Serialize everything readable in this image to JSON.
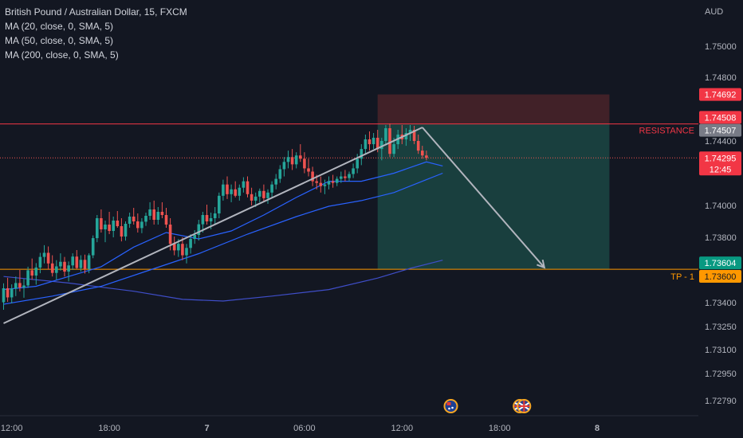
{
  "legend": {
    "title": "British Pound / Australian Dollar, 15, FXCM",
    "ma20": "MA (20, close, 0, SMA, 5)",
    "ma50": "MA (50, close, 0, SMA, 5)",
    "ma200": "MA (200, close, 0, SMA, 5)"
  },
  "colors": {
    "background": "#131722",
    "up": "#26a69a",
    "down": "#ef5350",
    "resistance": "#f23645",
    "tp": "#ff9800",
    "ma": "#2962ff",
    "ma200": "#3f4ec9",
    "trendline": "#b2b5be",
    "profit_zone": "#1b4a46",
    "stop_zone": "#4a2329"
  },
  "chart_data": {
    "type": "candlestick",
    "symbol": "British Pound / Australian Dollar",
    "interval": "15",
    "source": "FXCM",
    "currency_axis_label": "AUD",
    "y_ticks": [
      "1.75000",
      "1.74800",
      "1.74400",
      "1.74000",
      "1.73800",
      "1.73400",
      "1.73250",
      "1.73100",
      "1.72950",
      "1.72790"
    ],
    "y_tick_values": [
      1.75,
      1.748,
      1.744,
      1.74,
      1.738,
      1.734,
      1.7325,
      1.731,
      1.7295,
      1.7279
    ],
    "x_ticks": [
      {
        "label": "12:00",
        "slot": 2
      },
      {
        "label": "18:00",
        "slot": 26
      },
      {
        "label": "7",
        "slot": 50
      },
      {
        "label": "06:00",
        "slot": 74
      },
      {
        "label": "12:00",
        "slot": 98
      },
      {
        "label": "18:00",
        "slot": 122
      },
      {
        "label": "8",
        "slot": 146
      }
    ],
    "candles": [
      [
        1.73402,
        1.73518,
        1.73355,
        1.73488
      ],
      [
        1.73488,
        1.73552,
        1.73405,
        1.73432
      ],
      [
        1.73432,
        1.73512,
        1.73395,
        1.73486
      ],
      [
        1.73486,
        1.7356,
        1.7344,
        1.7352
      ],
      [
        1.7352,
        1.736,
        1.73468,
        1.73492
      ],
      [
        1.73492,
        1.73545,
        1.7343,
        1.73505
      ],
      [
        1.73505,
        1.7362,
        1.7349,
        1.73598
      ],
      [
        1.73598,
        1.7367,
        1.7354,
        1.73566
      ],
      [
        1.73566,
        1.73642,
        1.7351,
        1.73615
      ],
      [
        1.73615,
        1.73705,
        1.7358,
        1.7368
      ],
      [
        1.7368,
        1.73752,
        1.7364,
        1.73705
      ],
      [
        1.73705,
        1.73744,
        1.73602,
        1.7364
      ],
      [
        1.7364,
        1.7369,
        1.7356,
        1.73582
      ],
      [
        1.73582,
        1.7366,
        1.7354,
        1.73622
      ],
      [
        1.73622,
        1.73702,
        1.73596,
        1.7365
      ],
      [
        1.7365,
        1.7368,
        1.7356,
        1.7359
      ],
      [
        1.7359,
        1.73652,
        1.7353,
        1.73628
      ],
      [
        1.73628,
        1.73702,
        1.736,
        1.73682
      ],
      [
        1.73682,
        1.73722,
        1.73606,
        1.73612
      ],
      [
        1.73612,
        1.7369,
        1.7359,
        1.73662
      ],
      [
        1.73662,
        1.73694,
        1.73578,
        1.73606
      ],
      [
        1.73606,
        1.73702,
        1.7358,
        1.7369
      ],
      [
        1.7369,
        1.73812,
        1.73672,
        1.73795
      ],
      [
        1.73795,
        1.7394,
        1.7377,
        1.7392
      ],
      [
        1.7392,
        1.73975,
        1.7383,
        1.7385
      ],
      [
        1.7385,
        1.73905,
        1.7377,
        1.7388
      ],
      [
        1.7388,
        1.7396,
        1.7382,
        1.7384
      ],
      [
        1.7384,
        1.7393,
        1.738,
        1.73905
      ],
      [
        1.73905,
        1.73965,
        1.7386,
        1.7387
      ],
      [
        1.7387,
        1.7392,
        1.73775,
        1.73805
      ],
      [
        1.73805,
        1.739,
        1.7378,
        1.73885
      ],
      [
        1.73885,
        1.73955,
        1.7386,
        1.7393
      ],
      [
        1.7393,
        1.73985,
        1.7388,
        1.739
      ],
      [
        1.739,
        1.7395,
        1.7383,
        1.73858
      ],
      [
        1.73858,
        1.7392,
        1.73826,
        1.73898
      ],
      [
        1.73898,
        1.73955,
        1.73872,
        1.73935
      ],
      [
        1.73935,
        1.7402,
        1.7391,
        1.73975
      ],
      [
        1.73975,
        1.7403,
        1.7388,
        1.7391
      ],
      [
        1.7391,
        1.7399,
        1.7388,
        1.7396
      ],
      [
        1.7396,
        1.7402,
        1.7392,
        1.7394
      ],
      [
        1.7394,
        1.73985,
        1.7386,
        1.7388
      ],
      [
        1.7388,
        1.7392,
        1.7372,
        1.7376
      ],
      [
        1.7376,
        1.73805,
        1.7369,
        1.7372
      ],
      [
        1.7372,
        1.7379,
        1.7368,
        1.7376
      ],
      [
        1.7376,
        1.738,
        1.7366,
        1.7369
      ],
      [
        1.7369,
        1.7376,
        1.7364,
        1.73735
      ],
      [
        1.73735,
        1.7382,
        1.737,
        1.7379
      ],
      [
        1.7379,
        1.73845,
        1.7376,
        1.73815
      ],
      [
        1.73815,
        1.7391,
        1.7378,
        1.73882
      ],
      [
        1.73882,
        1.7396,
        1.7383,
        1.7394
      ],
      [
        1.7394,
        1.74005,
        1.7388,
        1.739
      ],
      [
        1.739,
        1.73955,
        1.7385,
        1.7392
      ],
      [
        1.7392,
        1.7399,
        1.7388,
        1.7395
      ],
      [
        1.7395,
        1.7408,
        1.7392,
        1.7406
      ],
      [
        1.7406,
        1.7416,
        1.7403,
        1.7413
      ],
      [
        1.7413,
        1.7418,
        1.7404,
        1.7407
      ],
      [
        1.7407,
        1.7413,
        1.7402,
        1.741
      ],
      [
        1.741,
        1.7415,
        1.7405,
        1.7406
      ],
      [
        1.7406,
        1.7413,
        1.7403,
        1.7411
      ],
      [
        1.7411,
        1.74175,
        1.7408,
        1.7415
      ],
      [
        1.7415,
        1.7418,
        1.7405,
        1.7407
      ],
      [
        1.7407,
        1.7411,
        1.74,
        1.7403
      ],
      [
        1.7403,
        1.7408,
        1.7399,
        1.74055
      ],
      [
        1.74055,
        1.74105,
        1.7402,
        1.7409
      ],
      [
        1.7409,
        1.7413,
        1.7402,
        1.74045
      ],
      [
        1.74045,
        1.741,
        1.7401,
        1.7408
      ],
      [
        1.7408,
        1.7415,
        1.7405,
        1.7413
      ],
      [
        1.7413,
        1.74195,
        1.741,
        1.74165
      ],
      [
        1.74165,
        1.7425,
        1.7414,
        1.74225
      ],
      [
        1.74225,
        1.743,
        1.7418,
        1.7427
      ],
      [
        1.7427,
        1.7434,
        1.7423,
        1.743
      ],
      [
        1.743,
        1.7435,
        1.7422,
        1.74255
      ],
      [
        1.74255,
        1.7433,
        1.7423,
        1.7431
      ],
      [
        1.7431,
        1.7438,
        1.7427,
        1.7429
      ],
      [
        1.7429,
        1.7433,
        1.742,
        1.7423
      ],
      [
        1.7423,
        1.7429,
        1.7418,
        1.7421
      ],
      [
        1.7421,
        1.7424,
        1.7412,
        1.7415
      ],
      [
        1.7415,
        1.7419,
        1.741,
        1.7414
      ],
      [
        1.7414,
        1.7418,
        1.7408,
        1.7412
      ],
      [
        1.7412,
        1.7416,
        1.7407,
        1.7413
      ],
      [
        1.7413,
        1.7418,
        1.741,
        1.7415
      ],
      [
        1.7415,
        1.7419,
        1.7411,
        1.7414
      ],
      [
        1.7414,
        1.7418,
        1.7412,
        1.74165
      ],
      [
        1.74165,
        1.7421,
        1.7414,
        1.7418
      ],
      [
        1.7418,
        1.7422,
        1.7415,
        1.7417
      ],
      [
        1.7417,
        1.7421,
        1.7415,
        1.74195
      ],
      [
        1.74195,
        1.7426,
        1.7417,
        1.7423
      ],
      [
        1.7423,
        1.7432,
        1.742,
        1.7429
      ],
      [
        1.7429,
        1.7438,
        1.7425,
        1.7435
      ],
      [
        1.7435,
        1.7444,
        1.7432,
        1.7441
      ],
      [
        1.7441,
        1.7446,
        1.7434,
        1.7438
      ],
      [
        1.7438,
        1.7445,
        1.7435,
        1.7442
      ],
      [
        1.7442,
        1.7447,
        1.7433,
        1.7435
      ],
      [
        1.7435,
        1.7442,
        1.7428,
        1.744
      ],
      [
        1.744,
        1.745,
        1.7438,
        1.7448
      ],
      [
        1.7448,
        1.7451,
        1.743,
        1.7432
      ],
      [
        1.7432,
        1.7442,
        1.743,
        1.7438
      ],
      [
        1.7438,
        1.7447,
        1.7435,
        1.7444
      ],
      [
        1.7444,
        1.745,
        1.7438,
        1.7441
      ],
      [
        1.7441,
        1.7448,
        1.7437,
        1.7445
      ],
      [
        1.7445,
        1.745,
        1.744,
        1.7447
      ],
      [
        1.7447,
        1.74495,
        1.7438,
        1.744
      ],
      [
        1.744,
        1.7444,
        1.7432,
        1.7434
      ],
      [
        1.7434,
        1.7437,
        1.7429,
        1.7431
      ],
      [
        1.7431,
        1.7434,
        1.7428,
        1.74295
      ]
    ],
    "ma20": [
      [
        0,
        1.7348
      ],
      [
        8,
        1.735
      ],
      [
        16,
        1.7356
      ],
      [
        24,
        1.7362
      ],
      [
        32,
        1.7374
      ],
      [
        40,
        1.7383
      ],
      [
        48,
        1.7379
      ],
      [
        56,
        1.7384
      ],
      [
        64,
        1.7394
      ],
      [
        72,
        1.7405
      ],
      [
        80,
        1.7415
      ],
      [
        88,
        1.7415
      ],
      [
        96,
        1.742
      ],
      [
        104,
        1.7427
      ],
      [
        108,
        1.74245
      ]
    ],
    "ma50": [
      [
        0,
        1.7339
      ],
      [
        12,
        1.7344
      ],
      [
        24,
        1.735
      ],
      [
        36,
        1.736
      ],
      [
        48,
        1.737
      ],
      [
        60,
        1.7382
      ],
      [
        72,
        1.7393
      ],
      [
        80,
        1.73995
      ],
      [
        88,
        1.7403
      ],
      [
        96,
        1.7408
      ],
      [
        104,
        1.7416
      ],
      [
        108,
        1.742
      ]
    ],
    "ma200": [
      [
        0,
        1.7356
      ],
      [
        16,
        1.7352
      ],
      [
        32,
        1.7347
      ],
      [
        44,
        1.7342
      ],
      [
        54,
        1.7341
      ],
      [
        66,
        1.7344
      ],
      [
        80,
        1.7348
      ],
      [
        92,
        1.7355
      ],
      [
        100,
        1.7361
      ],
      [
        108,
        1.7366
      ]
    ],
    "trendline": [
      [
        0,
        1.7327
      ],
      [
        103,
        1.74485
      ]
    ],
    "projection": [
      [
        103,
        1.74485
      ],
      [
        133,
        1.73615
      ]
    ],
    "resistance": {
      "label": "RESISTANCE",
      "price": 1.74507
    },
    "take_profit": {
      "label": "TP - 1",
      "price": 1.73604
    },
    "position": {
      "slot_from": 92,
      "slot_to": 149,
      "entry": 1.74507,
      "stop": 1.74692,
      "target": 1.73604
    },
    "price_tags": [
      {
        "text": "1.74692",
        "price": 1.74692,
        "bg": "#f23645",
        "fg": "#ffffff"
      },
      {
        "text": "1.74508",
        "price": 1.74508,
        "bg": "#f23645",
        "fg": "#ffffff"
      },
      {
        "text": "1.74507",
        "price": 1.74507,
        "bg": "#787b86",
        "fg": "#ffffff"
      },
      {
        "text": "1.74295",
        "sub": "12:45",
        "price": 1.74295,
        "bg": "#f23645",
        "fg": "#ffffff"
      },
      {
        "text": "1.73604",
        "price": 1.73604,
        "bg": "#089981",
        "fg": "#ffffff"
      },
      {
        "text": "1.73600",
        "price": 1.736,
        "bg": "#ff9800",
        "fg": "#131722"
      }
    ],
    "last_price": 1.74295,
    "events": [
      {
        "slot": 110,
        "icon": "au-flag-icon"
      },
      {
        "slot": 127,
        "icon": "uk-flag-icon"
      },
      {
        "slot": 128,
        "icon": "uk-flag-icon"
      }
    ]
  }
}
